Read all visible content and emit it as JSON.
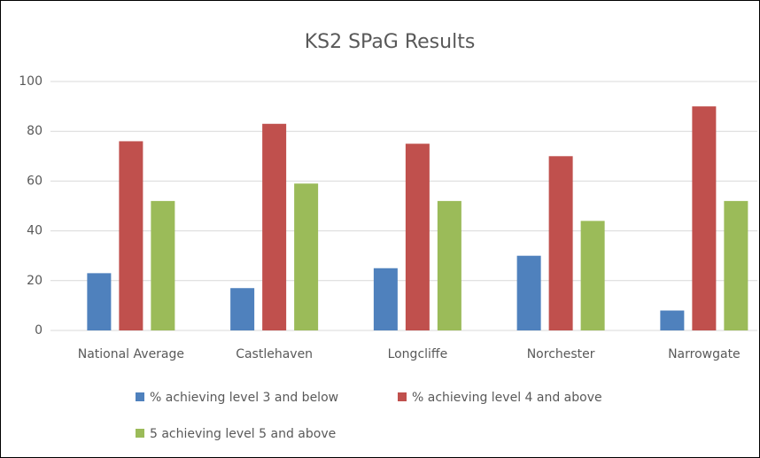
{
  "chart_data": {
    "type": "bar",
    "title": "KS2 SPaG Results",
    "categories": [
      "National Average",
      "Castlehaven",
      "Longcliffe",
      "Norchester",
      "Narrowgate"
    ],
    "series": [
      {
        "name": "% achieving level 3 and below",
        "color": "#4f81bd",
        "values": [
          23,
          17,
          25,
          30,
          8
        ]
      },
      {
        "name": "% achieving level 4 and above",
        "color": "#c0504d",
        "values": [
          76,
          83,
          75,
          70,
          90
        ]
      },
      {
        "name": "5 achieving level 5 and above",
        "color": "#9bbb59",
        "values": [
          52,
          59,
          52,
          44,
          52
        ]
      }
    ],
    "ylim": [
      0,
      100
    ],
    "yticks": [
      0,
      20,
      40,
      60,
      80,
      100
    ],
    "grid": true
  }
}
